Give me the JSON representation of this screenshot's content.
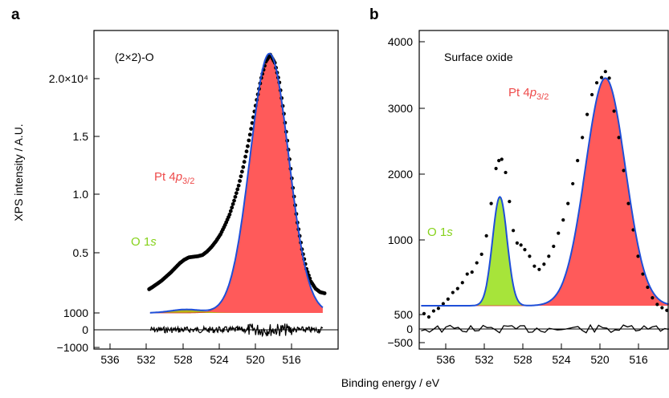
{
  "figure": {
    "xlabel": "Binding energy / eV",
    "ylabel": "XPS intensity / A.U."
  },
  "colors": {
    "pt_fill": "#ff5a5a",
    "o_fill": "#a7e43a",
    "o_overlap": "#b7b414",
    "fit_line": "#1f4fd8",
    "data_dots": "#000000",
    "pt_label": "#ee4b4b",
    "o_label": "#86d21b"
  },
  "chart_data": [
    {
      "panel": "a",
      "type": "scatter",
      "inset_label": "(2×2)-O",
      "xlim": [
        539,
        512
      ],
      "x_ticks": [
        "536",
        "532",
        "528",
        "524",
        "520",
        "516"
      ],
      "y_ticks": [
        "2.0×10⁴",
        "1.5",
        "1.0",
        "0.5",
        "1000",
        "0",
        "−1000"
      ],
      "peaks": [
        {
          "name": "Pt 4p3/2",
          "center": 519.6,
          "fwhm": 5.0,
          "height": 23400
        },
        {
          "name": "O 1s",
          "center": 528.8,
          "fwhm": 4.0,
          "height": 1300
        }
      ],
      "data_points": [
        [
          532.9,
          3050
        ],
        [
          532.5,
          3250
        ],
        [
          532.0,
          3520
        ],
        [
          531.5,
          3800
        ],
        [
          531.0,
          4150
        ],
        [
          530.5,
          4500
        ],
        [
          530.0,
          4900
        ],
        [
          529.5,
          5300
        ],
        [
          529.0,
          5600
        ],
        [
          528.5,
          5800
        ],
        [
          528.0,
          5850
        ],
        [
          527.5,
          5900
        ],
        [
          527.0,
          6000
        ],
        [
          526.5,
          6300
        ],
        [
          526.0,
          6700
        ],
        [
          525.5,
          7200
        ],
        [
          525.0,
          7800
        ],
        [
          524.5,
          8600
        ],
        [
          524.0,
          9500
        ],
        [
          523.5,
          10700
        ],
        [
          523.0,
          12000
        ],
        [
          522.5,
          13600
        ],
        [
          522.0,
          15400
        ],
        [
          521.5,
          17400
        ],
        [
          521.0,
          19400
        ],
        [
          520.5,
          21300
        ],
        [
          520.0,
          22700
        ],
        [
          519.5,
          23300
        ],
        [
          519.0,
          22600
        ],
        [
          518.5,
          20900
        ],
        [
          518.0,
          18200
        ],
        [
          517.5,
          15100
        ],
        [
          517.0,
          11800
        ],
        [
          516.5,
          8800
        ],
        [
          516.0,
          6500
        ],
        [
          515.5,
          4800
        ],
        [
          515.0,
          3700
        ],
        [
          514.5,
          3100
        ],
        [
          514.0,
          2800
        ],
        [
          513.5,
          2700
        ]
      ],
      "residual_ylim": [
        -1000,
        1000
      ]
    },
    {
      "panel": "b",
      "type": "scatter",
      "inset_label": "Surface oxide",
      "xlim": [
        539,
        513
      ],
      "x_ticks": [
        "536",
        "532",
        "528",
        "524",
        "520",
        "516"
      ],
      "y_ticks": [
        "4000",
        "3000",
        "2000",
        "1000",
        "500",
        "0",
        "−500"
      ],
      "peaks": [
        {
          "name": "Pt 4p3/2",
          "center": 519.6,
          "fwhm": 4.9,
          "height": 3950
        },
        {
          "name": "O 1s",
          "center": 530.6,
          "fwhm": 1.8,
          "height": 2150
        }
      ],
      "data_points": [
        [
          538.5,
          380
        ],
        [
          538.0,
          330
        ],
        [
          537.5,
          420
        ],
        [
          537.0,
          460
        ],
        [
          536.5,
          530
        ],
        [
          536.0,
          600
        ],
        [
          535.5,
          700
        ],
        [
          535.0,
          760
        ],
        [
          534.5,
          850
        ],
        [
          534.0,
          980
        ],
        [
          533.5,
          1010
        ],
        [
          533.0,
          1150
        ],
        [
          532.5,
          1280
        ],
        [
          532.0,
          1560
        ],
        [
          531.5,
          2050
        ],
        [
          531.0,
          2580
        ],
        [
          530.7,
          2700
        ],
        [
          530.4,
          2720
        ],
        [
          530.0,
          2520
        ],
        [
          529.6,
          2080
        ],
        [
          529.2,
          1640
        ],
        [
          528.8,
          1450
        ],
        [
          528.4,
          1420
        ],
        [
          528.0,
          1350
        ],
        [
          527.5,
          1250
        ],
        [
          527.0,
          1100
        ],
        [
          526.5,
          1050
        ],
        [
          526.0,
          1130
        ],
        [
          525.5,
          1250
        ],
        [
          525.0,
          1400
        ],
        [
          524.5,
          1600
        ],
        [
          524.0,
          1800
        ],
        [
          523.5,
          2050
        ],
        [
          523.0,
          2350
        ],
        [
          522.5,
          2700
        ],
        [
          522.0,
          3050
        ],
        [
          521.5,
          3400
        ],
        [
          521.0,
          3700
        ],
        [
          520.5,
          3880
        ],
        [
          520.0,
          3960
        ],
        [
          519.6,
          4050
        ],
        [
          519.2,
          3950
        ],
        [
          518.7,
          3450
        ],
        [
          518.2,
          3050
        ],
        [
          517.7,
          2550
        ],
        [
          517.2,
          2050
        ],
        [
          516.7,
          1650
        ],
        [
          516.2,
          1250
        ],
        [
          515.7,
          980
        ],
        [
          515.2,
          780
        ],
        [
          514.7,
          620
        ],
        [
          514.2,
          520
        ],
        [
          513.7,
          470
        ],
        [
          513.2,
          430
        ]
      ],
      "residual_ylim": [
        -500,
        500
      ]
    }
  ],
  "panel_a": {
    "letter": "a",
    "inset": "(2×2)-O",
    "pt_label_main": "Pt 4",
    "pt_label_p": "p",
    "pt_label_sub": "3/2",
    "o_label_main": "O 1",
    "o_label_s": "s"
  },
  "panel_b": {
    "letter": "b",
    "inset": "Surface oxide",
    "pt_label_main": "Pt 4",
    "pt_label_p": "p",
    "pt_label_sub": "3/2",
    "o_label_main": "O 1",
    "o_label_s": "s"
  }
}
